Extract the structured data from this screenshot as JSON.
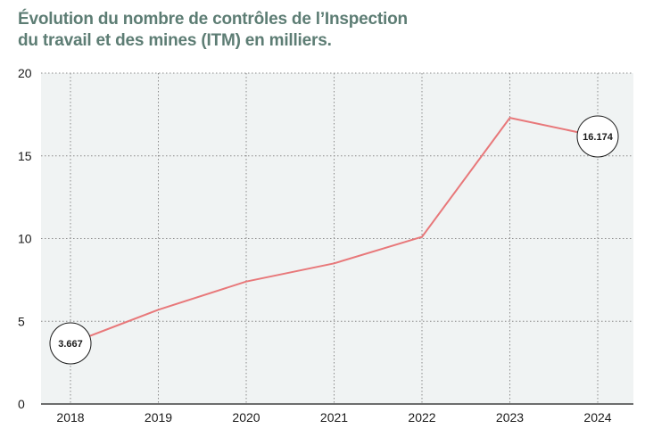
{
  "title": {
    "line1": "Évolution du nombre de contrôles de l’Inspection",
    "line2": "du travail et des mines (ITM) en milliers."
  },
  "colors": {
    "title": "#5d7d74",
    "line": "#e8787a",
    "plot_background": "#f0f3f3",
    "grid": "#8a8a8a"
  },
  "chart_data": {
    "type": "line",
    "title": "Évolution du nombre de contrôles de l’Inspection du travail et des mines (ITM) en milliers.",
    "xlabel": "",
    "ylabel": "",
    "categories": [
      "2018",
      "2019",
      "2020",
      "2021",
      "2022",
      "2023",
      "2024"
    ],
    "series": [
      {
        "values": [
          3.667,
          5.7,
          7.4,
          8.5,
          10.1,
          17.3,
          16.174
        ]
      }
    ],
    "ylim": [
      0,
      20
    ],
    "yticks": [
      0,
      5,
      10,
      15,
      20
    ],
    "ytick_labels": [
      "0",
      "5",
      "10",
      "15",
      "20"
    ],
    "grid": "dotted",
    "annotations": [
      {
        "category": "2018",
        "value": 3.667,
        "label": "3.667"
      },
      {
        "category": "2024",
        "value": 16.174,
        "label": "16.174"
      }
    ]
  }
}
